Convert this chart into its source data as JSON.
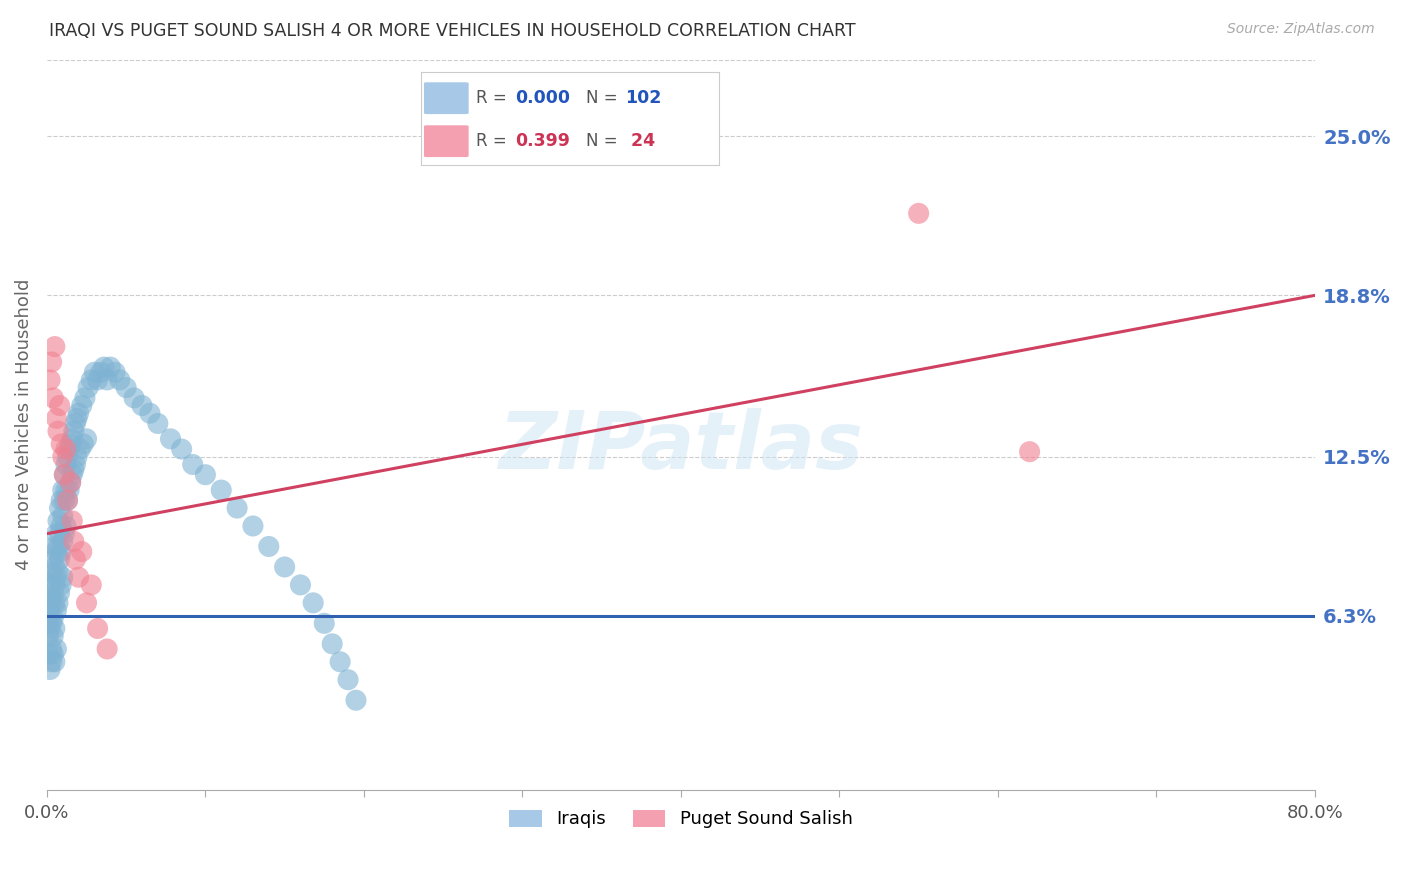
{
  "title": "IRAQI VS PUGET SOUND SALISH 4 OR MORE VEHICLES IN HOUSEHOLD CORRELATION CHART",
  "source": "Source: ZipAtlas.com",
  "ylabel": "4 or more Vehicles in Household",
  "xlim": [
    0.0,
    0.8
  ],
  "ylim": [
    -0.005,
    0.28
  ],
  "ytick_values": [
    0.063,
    0.125,
    0.188,
    0.25
  ],
  "ytick_labels": [
    "6.3%",
    "12.5%",
    "18.8%",
    "25.0%"
  ],
  "iraqis_color": "#7fb3d3",
  "salish_color": "#f08090",
  "iraqis_line_color": "#3060b0",
  "salish_line_color": "#d04060",
  "background_color": "#ffffff",
  "grid_color": "#cccccc",
  "iraqis_line_y": 0.063,
  "salish_line_x0": 0.0,
  "salish_line_y0": 0.095,
  "salish_line_x1": 0.8,
  "salish_line_y1": 0.188,
  "iraqis_x": [
    0.001,
    0.001,
    0.001,
    0.002,
    0.002,
    0.002,
    0.002,
    0.002,
    0.003,
    0.003,
    0.003,
    0.003,
    0.003,
    0.004,
    0.004,
    0.004,
    0.004,
    0.004,
    0.005,
    0.005,
    0.005,
    0.005,
    0.005,
    0.005,
    0.006,
    0.006,
    0.006,
    0.006,
    0.006,
    0.007,
    0.007,
    0.007,
    0.007,
    0.008,
    0.008,
    0.008,
    0.008,
    0.009,
    0.009,
    0.009,
    0.009,
    0.01,
    0.01,
    0.01,
    0.01,
    0.011,
    0.011,
    0.011,
    0.012,
    0.012,
    0.012,
    0.013,
    0.013,
    0.014,
    0.014,
    0.015,
    0.015,
    0.016,
    0.016,
    0.017,
    0.017,
    0.018,
    0.018,
    0.019,
    0.019,
    0.02,
    0.021,
    0.022,
    0.023,
    0.024,
    0.025,
    0.026,
    0.028,
    0.03,
    0.032,
    0.034,
    0.036,
    0.038,
    0.04,
    0.043,
    0.046,
    0.05,
    0.055,
    0.06,
    0.065,
    0.07,
    0.078,
    0.085,
    0.092,
    0.1,
    0.11,
    0.12,
    0.13,
    0.14,
    0.15,
    0.16,
    0.168,
    0.175,
    0.18,
    0.185,
    0.19,
    0.195
  ],
  "iraqis_y": [
    0.055,
    0.048,
    0.062,
    0.07,
    0.058,
    0.042,
    0.075,
    0.065,
    0.05,
    0.08,
    0.068,
    0.06,
    0.045,
    0.085,
    0.072,
    0.062,
    0.055,
    0.048,
    0.09,
    0.082,
    0.075,
    0.068,
    0.058,
    0.045,
    0.095,
    0.088,
    0.078,
    0.065,
    0.05,
    0.1,
    0.09,
    0.08,
    0.068,
    0.105,
    0.095,
    0.085,
    0.072,
    0.108,
    0.098,
    0.088,
    0.075,
    0.112,
    0.102,
    0.092,
    0.078,
    0.118,
    0.108,
    0.095,
    0.122,
    0.112,
    0.098,
    0.125,
    0.108,
    0.128,
    0.112,
    0.13,
    0.115,
    0.132,
    0.118,
    0.135,
    0.12,
    0.138,
    0.122,
    0.14,
    0.125,
    0.142,
    0.128,
    0.145,
    0.13,
    0.148,
    0.132,
    0.152,
    0.155,
    0.158,
    0.155,
    0.158,
    0.16,
    0.155,
    0.16,
    0.158,
    0.155,
    0.152,
    0.148,
    0.145,
    0.142,
    0.138,
    0.132,
    0.128,
    0.122,
    0.118,
    0.112,
    0.105,
    0.098,
    0.09,
    0.082,
    0.075,
    0.068,
    0.06,
    0.052,
    0.045,
    0.038,
    0.03
  ],
  "salish_x": [
    0.002,
    0.003,
    0.004,
    0.005,
    0.006,
    0.007,
    0.008,
    0.009,
    0.01,
    0.011,
    0.012,
    0.013,
    0.015,
    0.016,
    0.017,
    0.018,
    0.02,
    0.022,
    0.025,
    0.028,
    0.032,
    0.038,
    0.55,
    0.62
  ],
  "salish_y": [
    0.155,
    0.162,
    0.148,
    0.168,
    0.14,
    0.135,
    0.145,
    0.13,
    0.125,
    0.118,
    0.128,
    0.108,
    0.115,
    0.1,
    0.092,
    0.085,
    0.078,
    0.088,
    0.068,
    0.075,
    0.058,
    0.05,
    0.22,
    0.127
  ]
}
